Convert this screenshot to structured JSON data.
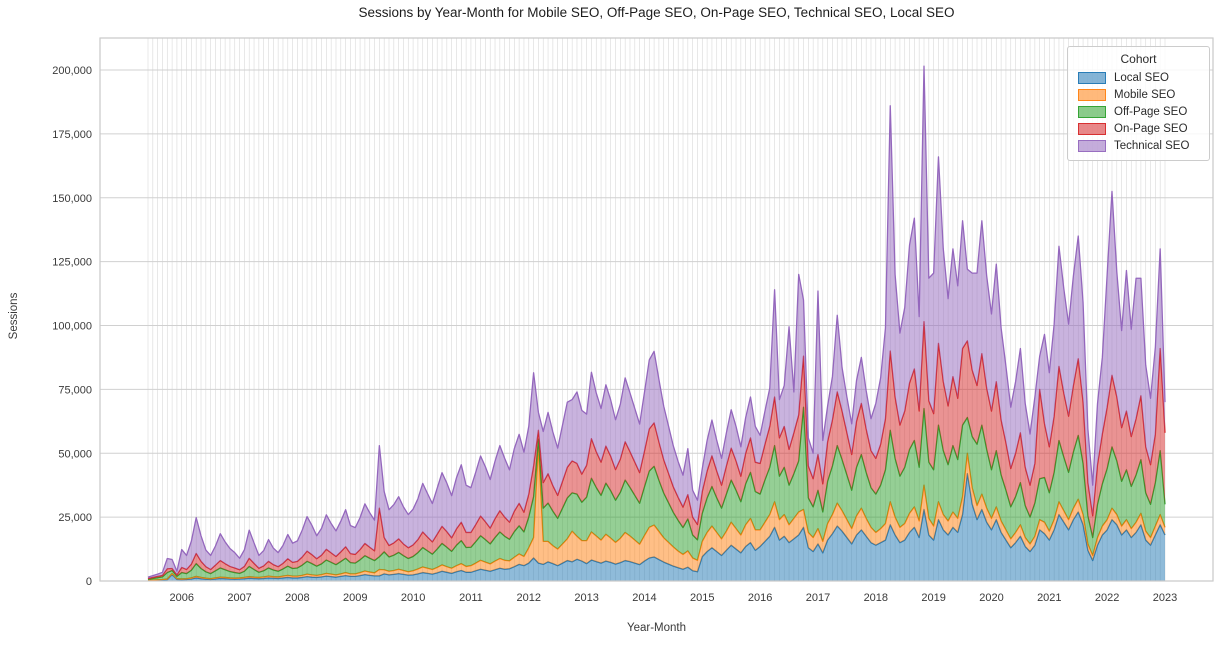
{
  "chart_data": {
    "type": "area",
    "stacked": true,
    "title": "Sessions by Year-Month for Mobile SEO, Off-Page SEO, On-Page SEO, Technical SEO, Local SEO",
    "xlabel": "Year-Month",
    "ylabel": "Sessions",
    "x_unit": "month",
    "x_start": "2005-06",
    "x_end": "2023-01",
    "ylim": [
      0,
      212500
    ],
    "grid": true,
    "yticks": [
      0,
      25000,
      50000,
      75000,
      100000,
      125000,
      150000,
      175000,
      200000
    ],
    "xticks": [
      2006,
      2007,
      2008,
      2009,
      2010,
      2011,
      2012,
      2013,
      2014,
      2015,
      2016,
      2017,
      2018,
      2019,
      2020,
      2021,
      2022,
      2023
    ],
    "legend": {
      "title": "Cohort",
      "position": "upper right"
    },
    "series": [
      {
        "name": "Local SEO",
        "color": "#1f77b4",
        "values": [
          200,
          300,
          300,
          400,
          500,
          2500,
          600,
          500,
          600,
          800,
          1200,
          900,
          700,
          600,
          800,
          1000,
          900,
          800,
          700,
          800,
          900,
          1100,
          1000,
          900,
          1000,
          1200,
          1100,
          1000,
          1200,
          1400,
          1200,
          1200,
          1400,
          1700,
          1500,
          1400,
          1600,
          1900,
          1700,
          1500,
          1800,
          2100,
          1800,
          1800,
          2100,
          2500,
          2200,
          2000,
          2000,
          2800,
          2400,
          2600,
          2900,
          2600,
          2300,
          2400,
          2800,
          3300,
          3000,
          2700,
          3200,
          3800,
          3400,
          3000,
          3600,
          4100,
          3400,
          3400,
          4000,
          4600,
          4200,
          3800,
          4400,
          5000,
          4600,
          4800,
          5600,
          6500,
          6000,
          7000,
          9000,
          7000,
          6500,
          7500,
          6800,
          6000,
          7000,
          8000,
          7500,
          8500,
          7800,
          6800,
          8200,
          7600,
          7000,
          7800,
          7300,
          6600,
          7200,
          8000,
          7600,
          7000,
          6400,
          7800,
          9000,
          9400,
          8400,
          7400,
          6600,
          5800,
          5200,
          4600,
          5400,
          4000,
          3600,
          9500,
          11500,
          13000,
          11500,
          10000,
          12000,
          14000,
          12500,
          11000,
          13500,
          15000,
          12000,
          13500,
          15500,
          17500,
          21000,
          16000,
          17500,
          15000,
          16500,
          18000,
          21000,
          13000,
          11500,
          14500,
          11000,
          16000,
          18500,
          21500,
          19500,
          17000,
          14500,
          18000,
          20000,
          17500,
          15000,
          14000,
          15000,
          16000,
          22000,
          18000,
          15000,
          16000,
          19000,
          21000,
          17000,
          28000,
          18000,
          16000,
          24000,
          20000,
          18000,
          21000,
          19000,
          26000,
          42000,
          30000,
          24000,
          28000,
          23000,
          20000,
          24000,
          19000,
          16000,
          13000,
          15000,
          17500,
          13500,
          11500,
          14000,
          20000,
          18500,
          16000,
          20000,
          26000,
          23000,
          20000,
          24000,
          27000,
          22000,
          12000,
          8000,
          14000,
          18000,
          20000,
          24000,
          22000,
          18000,
          20000,
          17000,
          19000,
          22000,
          16000,
          14000,
          18000,
          22000,
          18000
        ]
      },
      {
        "name": "Mobile SEO",
        "color": "#ff7f0e",
        "values": [
          100,
          100,
          200,
          200,
          300,
          400,
          300,
          300,
          300,
          400,
          600,
          500,
          400,
          300,
          400,
          500,
          500,
          400,
          400,
          400,
          500,
          600,
          500,
          500,
          600,
          700,
          600,
          600,
          700,
          800,
          700,
          700,
          800,
          1000,
          900,
          800,
          900,
          1100,
          1000,
          900,
          1000,
          1200,
          1000,
          1000,
          1200,
          1400,
          1300,
          1200,
          2500,
          1600,
          1400,
          1500,
          1700,
          1500,
          1300,
          1600,
          1900,
          2200,
          2000,
          1800,
          2100,
          2500,
          2200,
          2000,
          2400,
          2700,
          2300,
          2600,
          3000,
          3500,
          3200,
          2900,
          3400,
          3800,
          3500,
          3100,
          3700,
          4100,
          3600,
          6000,
          8000,
          46000,
          9000,
          8000,
          7000,
          6500,
          7500,
          8500,
          12000,
          9000,
          8000,
          9000,
          11000,
          10000,
          9000,
          10500,
          9500,
          8500,
          9500,
          11000,
          10000,
          9000,
          8000,
          10000,
          12000,
          12500,
          11000,
          9500,
          8500,
          7500,
          6500,
          5800,
          6400,
          5000,
          4500,
          6000,
          7500,
          8500,
          7500,
          6500,
          7500,
          9000,
          8000,
          7000,
          8500,
          9500,
          8000,
          6500,
          7500,
          8500,
          10000,
          8000,
          8500,
          7000,
          8000,
          9000,
          7000,
          6000,
          5500,
          6000,
          4500,
          6500,
          7500,
          9000,
          8000,
          7000,
          6000,
          7500,
          8500,
          7000,
          6000,
          5000,
          5500,
          6500,
          9000,
          7000,
          6000,
          6500,
          7500,
          8000,
          6500,
          9500,
          6500,
          5500,
          7000,
          6000,
          5500,
          6000,
          5500,
          7000,
          8000,
          6500,
          5500,
          6000,
          5500,
          4500,
          5000,
          4500,
          4000,
          3500,
          4000,
          4500,
          3500,
          3000,
          3500,
          4000,
          4500,
          3500,
          4000,
          5000,
          4500,
          4000,
          4500,
          5000,
          4000,
          2500,
          2000,
          3000,
          3500,
          4000,
          4500,
          4000,
          3500,
          4000,
          3500,
          4000,
          4500,
          3500,
          3000,
          3500,
          4000,
          3000
        ]
      },
      {
        "name": "Off-Page SEO",
        "color": "#2ca02c",
        "values": [
          400,
          600,
          800,
          1000,
          2500,
          1200,
          900,
          2500,
          2000,
          3000,
          5000,
          3500,
          2500,
          2000,
          2800,
          3600,
          3000,
          2500,
          2200,
          1800,
          2400,
          4000,
          3000,
          2000,
          2400,
          3200,
          2600,
          2200,
          2800,
          3600,
          3000,
          3200,
          4000,
          5000,
          4400,
          3600,
          4200,
          5200,
          4600,
          4000,
          4800,
          5600,
          4400,
          4200,
          5000,
          6000,
          5400,
          4800,
          5000,
          7000,
          5600,
          6000,
          6600,
          5800,
          5200,
          5600,
          6400,
          7600,
          6800,
          6000,
          7200,
          8400,
          7600,
          6600,
          8000,
          9000,
          7400,
          7200,
          8400,
          9600,
          8800,
          7800,
          9200,
          10400,
          9400,
          8400,
          10000,
          11000,
          9600,
          12000,
          16000,
          2500,
          13000,
          15000,
          13500,
          12000,
          14000,
          16000,
          15000,
          16500,
          15000,
          17000,
          21000,
          19000,
          17500,
          20000,
          18500,
          16500,
          18000,
          20500,
          19000,
          17500,
          16000,
          19000,
          22000,
          23000,
          20000,
          17500,
          15500,
          13500,
          12000,
          10500,
          12500,
          9000,
          8000,
          11000,
          13500,
          15500,
          13500,
          12000,
          14500,
          16500,
          15000,
          13000,
          16000,
          18000,
          15000,
          14000,
          16500,
          18500,
          22000,
          17000,
          18500,
          15500,
          17500,
          20000,
          40000,
          13500,
          12000,
          15000,
          11500,
          16500,
          19000,
          22500,
          20000,
          17500,
          15000,
          19000,
          21000,
          18000,
          15500,
          15000,
          17000,
          21000,
          28000,
          23000,
          20000,
          22000,
          25000,
          26000,
          21000,
          30000,
          22000,
          22000,
          30000,
          25000,
          22000,
          26000,
          23000,
          28000,
          14000,
          20000,
          24000,
          27000,
          23000,
          19000,
          22000,
          18000,
          15500,
          12500,
          14000,
          16500,
          12500,
          10500,
          13000,
          16000,
          17500,
          15000,
          18500,
          24000,
          21000,
          18500,
          22000,
          25000,
          20000,
          11000,
          7000,
          13000,
          16500,
          20000,
          24000,
          21000,
          17500,
          19500,
          16500,
          18500,
          21000,
          15000,
          13000,
          17000,
          25000,
          9000
        ]
      },
      {
        "name": "On-Page SEO",
        "color": "#d62728",
        "values": [
          300,
          400,
          500,
          600,
          1500,
          800,
          600,
          2000,
          1600,
          2400,
          4000,
          2800,
          2000,
          1600,
          2200,
          2900,
          2400,
          2000,
          1800,
          1400,
          1900,
          3200,
          2400,
          1600,
          1900,
          2600,
          2100,
          1800,
          2200,
          2900,
          2400,
          2600,
          3200,
          4000,
          3500,
          2900,
          3400,
          4200,
          3700,
          3200,
          3800,
          4500,
          3500,
          3400,
          4000,
          4800,
          4300,
          3800,
          19000,
          5600,
          4500,
          4800,
          5300,
          4600,
          4200,
          4500,
          5100,
          6100,
          5400,
          4800,
          5800,
          6700,
          6100,
          5300,
          6400,
          7200,
          5900,
          5800,
          6700,
          7700,
          7000,
          6200,
          7400,
          8300,
          7500,
          6700,
          8000,
          8800,
          7700,
          9000,
          12000,
          3500,
          10000,
          11500,
          10000,
          9000,
          10500,
          12000,
          12500,
          12000,
          11000,
          12500,
          15500,
          14000,
          13000,
          14500,
          13500,
          12000,
          13000,
          15000,
          14000,
          13000,
          12000,
          14000,
          16500,
          17000,
          15000,
          13000,
          11500,
          10000,
          9000,
          8000,
          9500,
          7000,
          6000,
          8500,
          10500,
          12000,
          10500,
          9000,
          11000,
          12500,
          11500,
          10000,
          12000,
          13500,
          11500,
          12000,
          14000,
          16000,
          19000,
          15000,
          16000,
          14000,
          16000,
          18000,
          20000,
          12500,
          11000,
          14000,
          11000,
          15500,
          18000,
          21000,
          19000,
          16500,
          14000,
          18000,
          20000,
          17000,
          14500,
          14000,
          16000,
          20000,
          31000,
          24000,
          20000,
          22000,
          26000,
          28000,
          22000,
          34000,
          24000,
          22000,
          32000,
          27000,
          23000,
          27000,
          24000,
          30000,
          30000,
          26000,
          23000,
          28000,
          24000,
          23000,
          27000,
          21500,
          18500,
          15000,
          17000,
          19500,
          15000,
          12500,
          15500,
          35000,
          21000,
          18000,
          22000,
          29000,
          25000,
          22000,
          26000,
          30000,
          24000,
          13000,
          8500,
          15500,
          19500,
          24000,
          28000,
          25000,
          21000,
          23000,
          19500,
          22000,
          25000,
          18000,
          15500,
          19000,
          40000,
          28000
        ]
      },
      {
        "name": "Technical SEO",
        "color": "#9467bd",
        "values": [
          500,
          700,
          900,
          1200,
          4000,
          3500,
          1400,
          7000,
          5500,
          9000,
          14000,
          10000,
          6500,
          5500,
          7500,
          10500,
          8500,
          7000,
          6000,
          4500,
          6500,
          11000,
          8000,
          5000,
          6000,
          8500,
          6500,
          5500,
          7000,
          9500,
          7500,
          8000,
          10500,
          13500,
          11500,
          9000,
          10500,
          13500,
          11500,
          10000,
          12000,
          14500,
          11000,
          10500,
          12500,
          15500,
          13500,
          12000,
          24500,
          18000,
          14000,
          15000,
          16500,
          14500,
          13000,
          14000,
          16000,
          19000,
          17000,
          15000,
          18000,
          21000,
          19000,
          16500,
          20000,
          22500,
          18500,
          17500,
          20500,
          23500,
          21500,
          19000,
          22500,
          25500,
          23000,
          20500,
          24500,
          27000,
          23500,
          26500,
          36500,
          7000,
          20000,
          24000,
          21000,
          18500,
          22000,
          25500,
          24000,
          28000,
          25000,
          20000,
          26000,
          23000,
          21000,
          24000,
          22000,
          19500,
          21500,
          25000,
          23000,
          21000,
          19000,
          23000,
          27000,
          28000,
          24500,
          21000,
          18500,
          16000,
          14000,
          12500,
          18000,
          10500,
          9500,
          9000,
          12000,
          14000,
          12000,
          10500,
          13000,
          15000,
          13500,
          11500,
          14000,
          16000,
          14000,
          11000,
          13000,
          15000,
          42000,
          15000,
          16000,
          48000,
          16000,
          55000,
          22000,
          11000,
          10000,
          64000,
          17000,
          14000,
          17000,
          30000,
          17000,
          14000,
          12000,
          16000,
          18000,
          15000,
          12500,
          21500,
          26000,
          35500,
          96000,
          48000,
          36000,
          40500,
          54000,
          59000,
          37000,
          100000,
          48000,
          55000,
          73000,
          52000,
          42000,
          50000,
          44000,
          50000,
          28000,
          38000,
          44000,
          52000,
          44000,
          38000,
          46000,
          36000,
          30000,
          24000,
          28000,
          33000,
          25000,
          20000,
          26000,
          13000,
          35000,
          29000,
          36000,
          47000,
          41000,
          36000,
          43000,
          48000,
          39000,
          21000,
          12000,
          24000,
          30000,
          52000,
          72000,
          49000,
          38000,
          55000,
          42000,
          55000,
          46000,
          32000,
          26000,
          34000,
          39000,
          12000
        ]
      }
    ]
  }
}
